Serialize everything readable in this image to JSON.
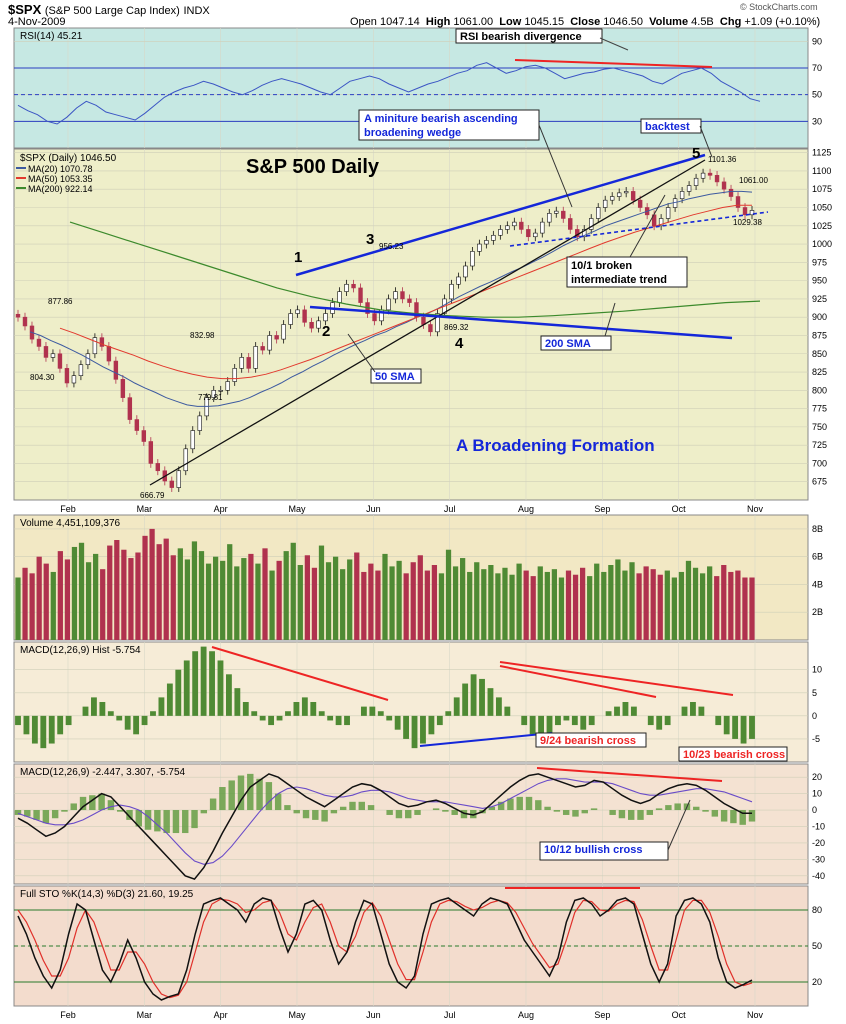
{
  "header": {
    "symbol": "$SPX",
    "name": "(S&P 500 Large Cap Index)",
    "exchange": "INDX",
    "date": "4-Nov-2009",
    "quote_labels": {
      "open": "Open",
      "high": "High",
      "low": "Low",
      "close": "Close",
      "volume": "Volume",
      "chg": "Chg"
    },
    "open": "1047.14",
    "high": "1061.00",
    "low": "1045.15",
    "close": "1046.50",
    "volume": "4.5B",
    "chg": "+1.09 (+0.10%)",
    "watermark": "© StockCharts.com"
  },
  "colors": {
    "rsi_bg": "#c6e8e3",
    "price_bg": "#eeeec9",
    "volume_bg": "#f2e8c4",
    "hist_bg": "#f6ecd7",
    "macd_bg": "#f4e2d2",
    "sto_bg": "#f3dccd",
    "up": "#4f8a34",
    "down": "#b0324e",
    "ma20": "#3d5aa0",
    "ma50": "#e23a2e",
    "ma200": "#3c8a2c",
    "annot_blue": "#1427d9",
    "annot_red": "#ee2424"
  },
  "chart_data": [
    {
      "type": "line",
      "panel": "rsi",
      "legend": "RSI(14) 45.21",
      "ylim": [
        10,
        100
      ],
      "y_ticks": [
        10,
        30,
        50,
        70,
        90
      ],
      "reference_lines": [
        30,
        50,
        70
      ],
      "series": [
        {
          "name": "RSI(14)",
          "values": [
            42,
            38,
            35,
            30,
            28,
            33,
            40,
            45,
            42,
            37,
            35,
            33,
            31,
            36,
            42,
            48,
            52,
            55,
            57,
            60,
            58,
            55,
            52,
            50,
            53,
            57,
            60,
            62,
            60,
            58,
            55,
            52,
            50,
            55,
            60,
            62,
            64,
            62,
            58,
            55,
            52,
            55,
            58,
            60,
            63,
            66,
            68,
            72,
            74,
            70,
            66,
            68,
            71,
            72,
            70,
            66,
            62,
            64,
            66,
            67,
            69,
            70,
            68,
            66,
            64,
            60,
            58,
            62,
            66,
            68,
            70,
            66,
            60,
            56,
            52,
            47,
            45
          ]
        }
      ],
      "annotations": [
        {
          "text": "RSI bearish divergence"
        }
      ]
    },
    {
      "type": "candlestick",
      "panel": "price",
      "title": "S&P 500 Daily",
      "legend": [
        "$SPX (Daily) 1046.50",
        "MA(20) 1070.78",
        "MA(50) 1053.35",
        "MA(200) 922.14"
      ],
      "ylim": [
        650,
        1130
      ],
      "y_ticks": [
        675,
        700,
        725,
        750,
        775,
        800,
        825,
        850,
        875,
        900,
        925,
        950,
        975,
        1000,
        1025,
        1050,
        1075,
        1100,
        1125
      ],
      "x_month_labels": [
        "Feb",
        "Mar",
        "Apr",
        "May",
        "Jun",
        "Jul",
        "Aug",
        "Sep",
        "Oct",
        "Nov"
      ],
      "closes": [
        900,
        888,
        870,
        860,
        845,
        850,
        830,
        810,
        820,
        835,
        850,
        872,
        860,
        840,
        815,
        790,
        760,
        745,
        730,
        700,
        690,
        676,
        667,
        690,
        720,
        745,
        765,
        790,
        800,
        800,
        812,
        830,
        845,
        830,
        860,
        855,
        875,
        870,
        890,
        905,
        910,
        893,
        885,
        895,
        905,
        920,
        935,
        945,
        940,
        920,
        905,
        895,
        910,
        925,
        935,
        925,
        920,
        900,
        890,
        880,
        905,
        925,
        945,
        955,
        970,
        990,
        1000,
        1005,
        1012,
        1020,
        1025,
        1030,
        1020,
        1010,
        1015,
        1030,
        1042,
        1045,
        1035,
        1020,
        1010,
        1020,
        1035,
        1050,
        1060,
        1065,
        1070,
        1072,
        1060,
        1050,
        1040,
        1025,
        1035,
        1050,
        1062,
        1072,
        1080,
        1090,
        1097,
        1094,
        1085,
        1075,
        1065,
        1050,
        1040,
        1046
      ],
      "ma20": [
        880,
        875,
        868,
        862,
        855,
        848,
        840,
        832,
        825,
        818,
        810,
        803,
        797,
        790,
        785,
        780,
        778,
        778,
        779,
        782,
        785,
        790,
        797,
        803,
        810,
        818,
        825,
        833,
        840,
        848,
        855,
        862,
        868,
        875,
        880,
        887,
        893,
        900,
        905,
        912,
        920,
        928,
        935,
        942,
        948,
        955,
        962,
        968,
        975,
        982,
        990,
        998,
        1005,
        1012,
        1018,
        1025,
        1030,
        1035,
        1040,
        1045,
        1050,
        1055,
        1058,
        1062,
        1065,
        1068,
        1070,
        1072,
        1072,
        1071
      ],
      "ma50": [
        885,
        878,
        870,
        862,
        855,
        848,
        840,
        833,
        827,
        822,
        818,
        816,
        816,
        818,
        822,
        828,
        835,
        842,
        850,
        858,
        866,
        874,
        882,
        890,
        898,
        906,
        914,
        922,
        930,
        938,
        946,
        954,
        962,
        970,
        978,
        986,
        994,
        1002,
        1009,
        1016,
        1022,
        1028,
        1034,
        1040,
        1045,
        1050,
        1053,
        1053
      ],
      "ma200": [
        1030,
        1015,
        1000,
        985,
        970,
        955,
        940,
        928,
        918,
        910,
        905,
        902,
        900,
        900,
        902,
        905,
        908,
        912,
        916,
        920,
        922
      ],
      "price_labels": [
        {
          "text": "877.86"
        },
        {
          "text": "804.30"
        },
        {
          "text": "832.98"
        },
        {
          "text": "779.81"
        },
        {
          "text": "666.79"
        },
        {
          "text": "956.23"
        },
        {
          "text": "869.32"
        },
        {
          "text": "1101.36"
        },
        {
          "text": "1061.00"
        },
        {
          "text": "1029.38"
        }
      ],
      "wave_labels": [
        "1",
        "2",
        "3",
        "4",
        "5"
      ],
      "annotations": [
        {
          "text": "A miniture bearish ascending broadening wedge"
        },
        {
          "text": "backtest"
        },
        {
          "text": "10/1 broken intermediate trend"
        },
        {
          "text": "200 SMA"
        },
        {
          "text": "50 SMA"
        },
        {
          "text": "A Broadening Formation"
        }
      ]
    },
    {
      "type": "bar",
      "panel": "volume",
      "legend": "Volume 4,451,109,376",
      "ylim": [
        0,
        9
      ],
      "y_ticks": [
        2,
        4,
        6,
        8
      ],
      "y_tick_labels": [
        "2B",
        "4B",
        "6B",
        "8B"
      ],
      "values": [
        4.5,
        5.2,
        4.8,
        6.0,
        5.5,
        4.9,
        6.4,
        5.8,
        6.7,
        7.0,
        5.6,
        6.2,
        5.1,
        6.8,
        7.2,
        6.5,
        5.9,
        6.3,
        7.5,
        8.0,
        6.9,
        7.3,
        6.1,
        6.6,
        5.8,
        7.1,
        6.4,
        5.5,
        6.0,
        5.7,
        6.9,
        5.3,
        5.9,
        6.2,
        5.5,
        6.6,
        5.0,
        5.7,
        6.4,
        7.0,
        5.4,
        6.1,
        5.2,
        6.8,
        5.6,
        6.0,
        5.1,
        5.8,
        6.3,
        4.9,
        5.5,
        5.0,
        6.2,
        5.3,
        5.7,
        4.8,
        5.6,
        6.1,
        5.0,
        5.4,
        4.8,
        6.5,
        5.3,
        5.9,
        4.9,
        5.6,
        5.1,
        5.4,
        4.8,
        5.2,
        4.7,
        5.5,
        5.0,
        4.6,
        5.3,
        4.9,
        5.1,
        4.5,
        5.0,
        4.7,
        5.2,
        4.6,
        5.5,
        4.9,
        5.4,
        5.8,
        5.0,
        5.6,
        4.8,
        5.3,
        5.1,
        4.7,
        5.0,
        4.5,
        4.9,
        5.7,
        5.2,
        4.8,
        5.3,
        4.6,
        5.4,
        4.9,
        5.0,
        4.5,
        4.5
      ]
    },
    {
      "type": "bar",
      "panel": "macd-histogram",
      "legend": "MACD(12,26,9) Hist -5.754",
      "ylim": [
        -10,
        16
      ],
      "y_ticks": [
        -5,
        0,
        5,
        10
      ],
      "values": [
        -2,
        -4,
        -6,
        -7,
        -6,
        -4,
        -2,
        0,
        2,
        4,
        3,
        1,
        -1,
        -3,
        -4,
        -2,
        1,
        4,
        7,
        10,
        12,
        14,
        15,
        14,
        12,
        9,
        6,
        3,
        1,
        -1,
        -2,
        -1,
        1,
        3,
        4,
        3,
        1,
        -1,
        -2,
        -2,
        0,
        2,
        2,
        1,
        -1,
        -3,
        -5,
        -7,
        -6,
        -4,
        -2,
        1,
        4,
        7,
        9,
        8,
        6,
        4,
        2,
        0,
        -2,
        -4,
        -5,
        -4,
        -2,
        -1,
        -2,
        -3,
        -2,
        0,
        1,
        2,
        3,
        2,
        0,
        -2,
        -3,
        -2,
        0,
        2,
        3,
        2,
        0,
        -2,
        -4,
        -5,
        -6,
        -5
      ],
      "annotations": [
        {
          "text": "9/24 bearish cross"
        },
        {
          "text": "10/23 bearish cross"
        }
      ]
    },
    {
      "type": "line",
      "panel": "macd",
      "legend": "MACD(12,26,9) -2.447, 3.307, -5.754",
      "ylim": [
        -45,
        28
      ],
      "y_ticks": [
        -40,
        -30,
        -20,
        -10,
        0,
        10,
        20
      ],
      "series": [
        {
          "name": "MACD",
          "values": [
            -5,
            -8,
            -12,
            -16,
            -14,
            -10,
            -4,
            2,
            6,
            10,
            8,
            2,
            -4,
            -10,
            -16,
            -22,
            -28,
            -34,
            -40,
            -42,
            -35,
            -25,
            -14,
            -4,
            6,
            14,
            18,
            22,
            20,
            16,
            12,
            8,
            5,
            2,
            6,
            10,
            14,
            16,
            15,
            12,
            8,
            4,
            2,
            3,
            5,
            6,
            4,
            1,
            -2,
            -3,
            -1,
            4,
            9,
            14,
            18,
            21,
            22,
            20,
            18,
            16,
            14,
            15,
            18,
            17,
            13,
            9,
            6,
            4,
            6,
            10,
            13,
            15,
            16,
            15,
            12,
            8,
            4,
            1,
            -2,
            -2
          ]
        },
        {
          "name": "Signal",
          "values": [
            -2,
            -4,
            -6,
            -8,
            -9,
            -9,
            -8,
            -6,
            -3,
            0,
            2,
            3,
            2,
            0,
            -4,
            -9,
            -14,
            -20,
            -26,
            -31,
            -33,
            -32,
            -28,
            -22,
            -15,
            -8,
            -1,
            5,
            10,
            13,
            14,
            13,
            11,
            9,
            8,
            8,
            9,
            11,
            12,
            12,
            11,
            9,
            7,
            6,
            5,
            5,
            5,
            4,
            3,
            2,
            1,
            2,
            4,
            7,
            10,
            13,
            16,
            18,
            19,
            19,
            18,
            17,
            17,
            17,
            16,
            14,
            12,
            10,
            9,
            9,
            10,
            11,
            12,
            13,
            13,
            12,
            11,
            9,
            7,
            5
          ]
        },
        {
          "name": "Histogram",
          "values": [
            -3,
            -4,
            -6,
            -8,
            -5,
            -1,
            4,
            8,
            9,
            10,
            6,
            -1,
            -6,
            -10,
            -12,
            -13,
            -14,
            -14,
            -14,
            -11,
            -2,
            7,
            14,
            18,
            21,
            22,
            19,
            17,
            10,
            3,
            -2,
            -5,
            -6,
            -7,
            -2,
            2,
            5,
            5,
            3,
            0,
            -3,
            -5,
            -5,
            -3,
            0,
            1,
            -1,
            -3,
            -5,
            -5,
            -2,
            2,
            5,
            7,
            8,
            8,
            6,
            2,
            -1,
            -3,
            -4,
            -2,
            1,
            0,
            -3,
            -5,
            -6,
            -6,
            -3,
            1,
            3,
            4,
            4,
            2,
            -1,
            -4,
            -7,
            -8,
            -9,
            -7
          ]
        }
      ],
      "annotations": [
        {
          "text": "10/12 bullish cross"
        }
      ]
    },
    {
      "type": "line",
      "panel": "full-stochastics",
      "legend": "Full STO %K(14,3) %D(3) 21.60, 19.25",
      "ylim": [
        0,
        100
      ],
      "y_ticks": [
        20,
        50,
        80
      ],
      "series": [
        {
          "name": "%K(14,3)",
          "values": [
            75,
            60,
            40,
            25,
            15,
            30,
            60,
            85,
            80,
            55,
            30,
            20,
            35,
            55,
            40,
            20,
            10,
            5,
            8,
            10,
            30,
            60,
            85,
            88,
            90,
            85,
            80,
            70,
            85,
            90,
            88,
            65,
            45,
            60,
            85,
            88,
            80,
            55,
            35,
            45,
            70,
            88,
            85,
            60,
            35,
            20,
            15,
            25,
            60,
            85,
            88,
            90,
            85,
            80,
            75,
            85,
            90,
            88,
            85,
            70,
            55,
            45,
            35,
            25,
            40,
            70,
            88,
            90,
            85,
            75,
            80,
            88,
            90,
            85,
            60,
            35,
            20,
            35,
            75,
            88,
            90,
            85,
            70,
            40,
            20,
            15,
            18,
            21.6
          ]
        },
        {
          "name": "%D(3)",
          "values": [
            80,
            70,
            55,
            38,
            25,
            25,
            40,
            65,
            80,
            70,
            50,
            30,
            30,
            45,
            45,
            35,
            20,
            10,
            7,
            9,
            20,
            45,
            70,
            85,
            89,
            88,
            85,
            78,
            80,
            86,
            88,
            78,
            60,
            55,
            70,
            82,
            85,
            70,
            50,
            45,
            58,
            78,
            86,
            75,
            55,
            35,
            22,
            22,
            45,
            70,
            85,
            88,
            87,
            83,
            80,
            82,
            86,
            88,
            86,
            78,
            65,
            52,
            42,
            32,
            35,
            55,
            78,
            88,
            87,
            80,
            79,
            85,
            88,
            87,
            72,
            50,
            30,
            30,
            55,
            80,
            88,
            88,
            78,
            58,
            35,
            20,
            17,
            19.25
          ]
        }
      ]
    }
  ]
}
